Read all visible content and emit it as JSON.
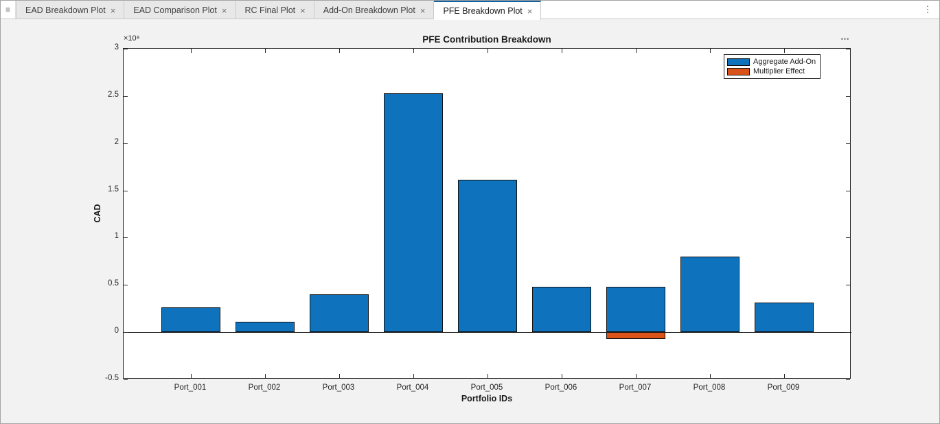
{
  "tabbar": {
    "tabs": [
      {
        "label": "EAD Breakdown Plot",
        "active": false
      },
      {
        "label": "EAD Comparison Plot",
        "active": false
      },
      {
        "label": "RC Final Plot",
        "active": false
      },
      {
        "label": "Add-On Breakdown Plot",
        "active": false
      },
      {
        "label": "PFE Breakdown Plot",
        "active": true
      }
    ],
    "close_glyph": "×",
    "grip_glyph": "≡",
    "kebab_glyph": "⋮"
  },
  "figure": {
    "more_glyph": "•••",
    "accent_color": "#1261a0"
  },
  "chart_data": {
    "type": "bar",
    "title": "PFE Contribution Breakdown",
    "xlabel": "Portfolio IDs",
    "ylabel": "CAD",
    "exponent_label": "×10⁸",
    "value_unit": "1e8 CAD",
    "categories": [
      "Port_001",
      "Port_002",
      "Port_003",
      "Port_004",
      "Port_005",
      "Port_006",
      "Port_007",
      "Port_008",
      "Port_009"
    ],
    "series": [
      {
        "name": "Aggregate Add-On",
        "color": "#0e72bd",
        "values": [
          0.26,
          0.11,
          0.4,
          2.53,
          1.61,
          0.48,
          0.48,
          0.8,
          0.31
        ]
      },
      {
        "name": "Multiplier Effect",
        "color": "#d95319",
        "values": [
          0,
          0,
          0,
          0,
          0,
          0,
          -0.07,
          0,
          0
        ]
      }
    ],
    "ylim": [
      -0.5,
      3
    ],
    "yticks": [
      -0.5,
      0,
      0.5,
      1,
      1.5,
      2,
      2.5,
      3
    ],
    "ytick_labels": [
      "-0.5",
      "0",
      "0.5",
      "1",
      "1.5",
      "2",
      "2.5",
      "3"
    ],
    "grid": false,
    "legend_position": "northeast"
  }
}
